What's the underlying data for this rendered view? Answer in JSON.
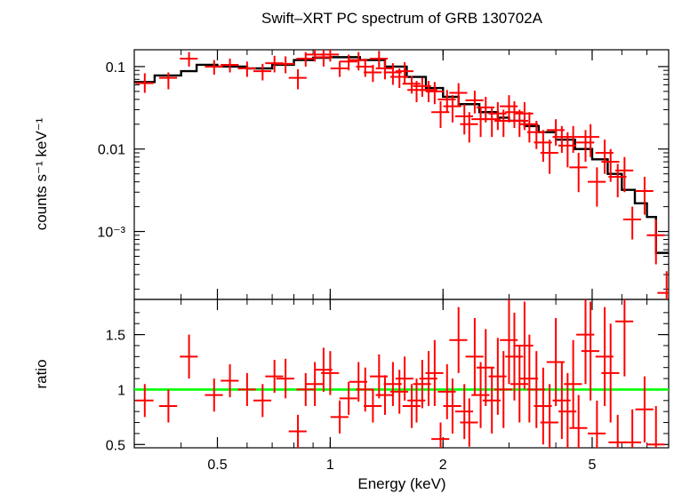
{
  "chart_data": {
    "type": "scatter",
    "title": "Swift–XRT PC spectrum of GRB 130702A",
    "xlabel": "Energy (keV)",
    "xscale": "log",
    "xlim": [
      0.3,
      8.0
    ],
    "xticks": [
      {
        "value": 0.5,
        "label": "0.5"
      },
      {
        "value": 1,
        "label": "1"
      },
      {
        "value": 2,
        "label": "2"
      },
      {
        "value": 5,
        "label": "5"
      }
    ],
    "colors": {
      "data": "#ff0000",
      "model": "#000000",
      "unity": "#00ff00"
    },
    "top_panel": {
      "ylabel": "counts s⁻¹ keV⁻¹",
      "yscale": "log",
      "ylim": [
        0.00015,
        0.16
      ],
      "yticks": [
        {
          "value": 0.1,
          "label": "0.1"
        },
        {
          "value": 0.01,
          "label": "0.01"
        },
        {
          "value": 0.001,
          "label": "10⁻³"
        }
      ],
      "series": [
        {
          "kind": "data",
          "points": [
            [
              0.32,
              0.063,
              0.015,
              0.02
            ],
            [
              0.37,
              0.073,
              0.02,
              0.012
            ],
            [
              0.42,
              0.125,
              0.025,
              0.025
            ],
            [
              0.49,
              0.1,
              0.02,
              0.02
            ],
            [
              0.54,
              0.105,
              0.02,
              0.02
            ],
            [
              0.6,
              0.095,
              0.02,
              0.02
            ],
            [
              0.66,
              0.088,
              0.02,
              0.02
            ],
            [
              0.71,
              0.11,
              0.025,
              0.025
            ],
            [
              0.76,
              0.108,
              0.025,
              0.025
            ],
            [
              0.82,
              0.073,
              0.02,
              0.02
            ],
            [
              0.86,
              0.125,
              0.025,
              0.025
            ],
            [
              0.91,
              0.14,
              0.025,
              0.025
            ],
            [
              0.96,
              0.13,
              0.03,
              0.03
            ],
            [
              1.0,
              0.14,
              0.025,
              0.025
            ],
            [
              1.06,
              0.095,
              0.02,
              0.02
            ],
            [
              1.12,
              0.115,
              0.025,
              0.025
            ],
            [
              1.19,
              0.12,
              0.03,
              0.03
            ],
            [
              1.24,
              0.1,
              0.025,
              0.025
            ],
            [
              1.3,
              0.085,
              0.02,
              0.02
            ],
            [
              1.35,
              0.125,
              0.03,
              0.03
            ],
            [
              1.4,
              0.095,
              0.025,
              0.025
            ],
            [
              1.47,
              0.085,
              0.025,
              0.025
            ],
            [
              1.53,
              0.075,
              0.02,
              0.02
            ],
            [
              1.58,
              0.088,
              0.025,
              0.025
            ],
            [
              1.65,
              0.062,
              0.015,
              0.015
            ],
            [
              1.7,
              0.052,
              0.015,
              0.015
            ],
            [
              1.76,
              0.058,
              0.015,
              0.015
            ],
            [
              1.83,
              0.052,
              0.015,
              0.015
            ],
            [
              1.9,
              0.05,
              0.015,
              0.015
            ],
            [
              1.97,
              0.028,
              0.01,
              0.01
            ],
            [
              2.05,
              0.04,
              0.012,
              0.012
            ],
            [
              2.12,
              0.033,
              0.012,
              0.012
            ],
            [
              2.2,
              0.048,
              0.015,
              0.015
            ],
            [
              2.28,
              0.025,
              0.01,
              0.01
            ],
            [
              2.35,
              0.02,
              0.008,
              0.008
            ],
            [
              2.43,
              0.039,
              0.012,
              0.012
            ],
            [
              2.52,
              0.023,
              0.009,
              0.009
            ],
            [
              2.6,
              0.032,
              0.011,
              0.011
            ],
            [
              2.7,
              0.023,
              0.009,
              0.009
            ],
            [
              2.8,
              0.027,
              0.01,
              0.01
            ],
            [
              2.9,
              0.022,
              0.008,
              0.008
            ],
            [
              3.0,
              0.033,
              0.012,
              0.012
            ],
            [
              3.1,
              0.028,
              0.01,
              0.01
            ],
            [
              3.2,
              0.022,
              0.008,
              0.008
            ],
            [
              3.3,
              0.027,
              0.01,
              0.01
            ],
            [
              3.4,
              0.02,
              0.008,
              0.008
            ],
            [
              3.55,
              0.016,
              0.006,
              0.006
            ],
            [
              3.7,
              0.012,
              0.005,
              0.005
            ],
            [
              3.85,
              0.009,
              0.004,
              0.004
            ],
            [
              4.0,
              0.017,
              0.006,
              0.006
            ],
            [
              4.15,
              0.014,
              0.005,
              0.005
            ],
            [
              4.3,
              0.011,
              0.005,
              0.005
            ],
            [
              4.45,
              0.014,
              0.005,
              0.005
            ],
            [
              4.6,
              0.006,
              0.003,
              0.003
            ],
            [
              4.8,
              0.012,
              0.005,
              0.005
            ],
            [
              4.95,
              0.014,
              0.006,
              0.006
            ],
            [
              5.15,
              0.004,
              0.002,
              0.002
            ],
            [
              5.4,
              0.009,
              0.004,
              0.004
            ],
            [
              5.6,
              0.007,
              0.003,
              0.003
            ],
            [
              5.85,
              0.0046,
              0.002,
              0.002
            ],
            [
              6.1,
              0.0055,
              0.0025,
              0.0025
            ],
            [
              6.4,
              0.0014,
              0.0006,
              0.0006
            ],
            [
              6.9,
              0.0031,
              0.0015,
              0.0015
            ],
            [
              7.4,
              0.0009,
              0.0005,
              0.0005
            ],
            [
              7.9,
              0.00018,
              0.00015,
              0.00015
            ]
          ],
          "x_err": 0.025
        },
        {
          "kind": "model-step",
          "steps": [
            [
              0.3,
              0.065
            ],
            [
              0.34,
              0.078
            ],
            [
              0.4,
              0.088
            ],
            [
              0.44,
              0.105
            ],
            [
              0.5,
              0.1
            ],
            [
              0.6,
              0.095
            ],
            [
              0.7,
              0.105
            ],
            [
              0.8,
              0.12
            ],
            [
              0.9,
              0.128
            ],
            [
              1.0,
              0.13
            ],
            [
              1.2,
              0.12
            ],
            [
              1.4,
              0.1
            ],
            [
              1.6,
              0.075
            ],
            [
              1.8,
              0.055
            ],
            [
              2.0,
              0.043
            ],
            [
              2.2,
              0.035
            ],
            [
              2.5,
              0.028
            ],
            [
              2.8,
              0.024
            ],
            [
              3.0,
              0.022
            ],
            [
              3.3,
              0.019
            ],
            [
              3.6,
              0.016
            ],
            [
              4.0,
              0.013
            ],
            [
              4.5,
              0.01
            ],
            [
              5.0,
              0.0075
            ],
            [
              5.5,
              0.005
            ],
            [
              6.0,
              0.0032
            ],
            [
              6.5,
              0.0022
            ],
            [
              7.0,
              0.0015
            ],
            [
              7.4,
              0.00055
            ],
            [
              8.0,
              0.00055
            ]
          ]
        }
      ]
    },
    "bottom_panel": {
      "ylabel": "ratio",
      "yscale": "linear",
      "ylim": [
        0.47,
        1.82
      ],
      "yticks": [
        {
          "value": 0.5,
          "label": "0.5"
        },
        {
          "value": 1.0,
          "label": "1"
        },
        {
          "value": 1.5,
          "label": "1.5"
        }
      ],
      "reference_line": 1.0,
      "points": [
        [
          0.32,
          0.9,
          0.15
        ],
        [
          0.37,
          0.85,
          0.15
        ],
        [
          0.42,
          1.3,
          0.2
        ],
        [
          0.49,
          0.95,
          0.15
        ],
        [
          0.54,
          1.08,
          0.15
        ],
        [
          0.6,
          1.0,
          0.15
        ],
        [
          0.66,
          0.9,
          0.15
        ],
        [
          0.71,
          1.12,
          0.15
        ],
        [
          0.76,
          1.1,
          0.18
        ],
        [
          0.82,
          0.62,
          0.15
        ],
        [
          0.86,
          1.0,
          0.15
        ],
        [
          0.91,
          1.05,
          0.2
        ],
        [
          0.96,
          1.18,
          0.2
        ],
        [
          1.0,
          1.15,
          0.2
        ],
        [
          1.06,
          0.75,
          0.15
        ],
        [
          1.12,
          0.92,
          0.15
        ],
        [
          1.19,
          1.07,
          0.18
        ],
        [
          1.24,
          1.0,
          0.2
        ],
        [
          1.3,
          0.85,
          0.15
        ],
        [
          1.35,
          1.12,
          0.2
        ],
        [
          1.4,
          0.95,
          0.18
        ],
        [
          1.47,
          1.05,
          0.2
        ],
        [
          1.53,
          0.98,
          0.2
        ],
        [
          1.58,
          1.1,
          0.2
        ],
        [
          1.65,
          0.85,
          0.2
        ],
        [
          1.7,
          0.9,
          0.2
        ],
        [
          1.76,
          1.05,
          0.22
        ],
        [
          1.83,
          1.1,
          0.25
        ],
        [
          1.9,
          1.15,
          0.3
        ],
        [
          1.97,
          0.55,
          0.15
        ],
        [
          2.05,
          0.98,
          0.25
        ],
        [
          2.12,
          0.85,
          0.25
        ],
        [
          2.2,
          1.45,
          0.3
        ],
        [
          2.28,
          0.8,
          0.25
        ],
        [
          2.35,
          0.7,
          0.22
        ],
        [
          2.43,
          1.3,
          0.35
        ],
        [
          2.52,
          0.95,
          0.3
        ],
        [
          2.6,
          1.2,
          0.35
        ],
        [
          2.7,
          0.9,
          0.3
        ],
        [
          2.8,
          1.12,
          0.35
        ],
        [
          2.9,
          1.0,
          0.35
        ],
        [
          3.0,
          1.45,
          0.4
        ],
        [
          3.1,
          1.3,
          0.4
        ],
        [
          3.2,
          1.05,
          0.35
        ],
        [
          3.3,
          1.4,
          0.4
        ],
        [
          3.4,
          1.1,
          0.4
        ],
        [
          3.55,
          1.0,
          0.35
        ],
        [
          3.7,
          0.85,
          0.35
        ],
        [
          3.85,
          0.7,
          0.35
        ],
        [
          4.0,
          1.25,
          0.4
        ],
        [
          4.15,
          0.9,
          0.35
        ],
        [
          4.3,
          0.8,
          0.35
        ],
        [
          4.45,
          1.05,
          0.4
        ],
        [
          4.6,
          0.65,
          0.3
        ],
        [
          4.8,
          1.5,
          0.45
        ],
        [
          4.95,
          1.35,
          0.45
        ],
        [
          5.15,
          0.6,
          0.3
        ],
        [
          5.4,
          1.3,
          0.45
        ],
        [
          5.6,
          1.15,
          0.45
        ],
        [
          5.85,
          0.52,
          0.25
        ],
        [
          6.1,
          1.62,
          0.5
        ],
        [
          6.4,
          0.52,
          0.3
        ],
        [
          6.9,
          0.82,
          0.3
        ],
        [
          7.4,
          0.5,
          0.35
        ]
      ],
      "x_err": 0.025
    }
  }
}
